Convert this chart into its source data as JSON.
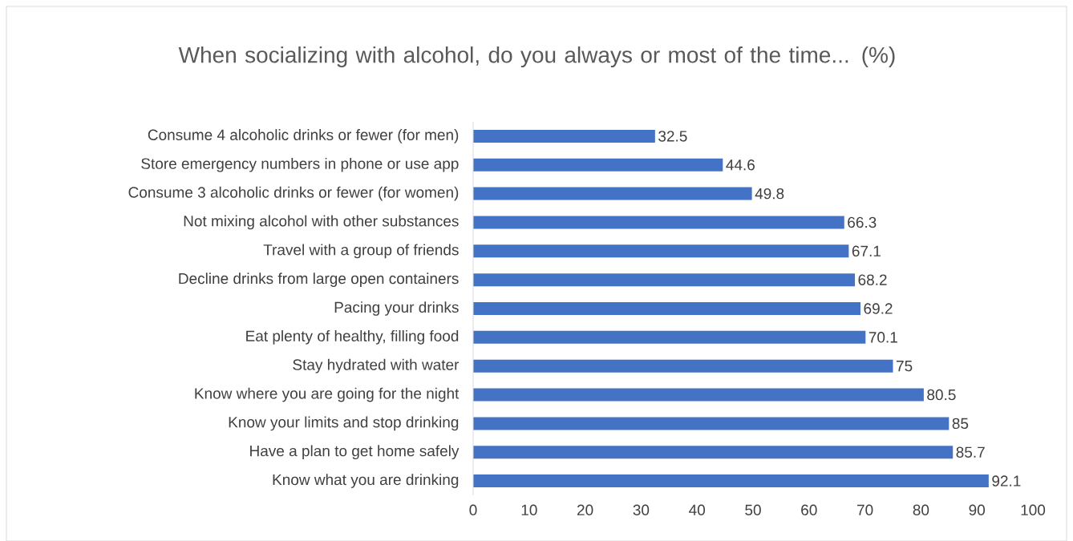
{
  "chart_data": {
    "type": "bar",
    "orientation": "horizontal",
    "title": "When socializing with alcohol, do you always or most of the time... (%)",
    "categories": [
      "Consume 4 alcoholic drinks or fewer (for men)",
      "Store emergency numbers in phone or use app",
      "Consume 3 alcoholic drinks or fewer (for women)",
      "Not mixing alcohol with other substances",
      "Travel with a group of friends",
      "Decline drinks from large open containers",
      "Pacing your drinks",
      "Eat plenty of healthy, filling food",
      "Stay hydrated with water",
      "Know where you are going for the night",
      "Know your limits and stop drinking",
      "Have a plan to get home safely",
      "Know what you are drinking"
    ],
    "values": [
      32.5,
      44.6,
      49.8,
      66.3,
      67.1,
      68.2,
      69.2,
      70.1,
      75,
      80.5,
      85,
      85.7,
      92.1
    ],
    "color": "#4472c4",
    "data_labels": true,
    "grid": false,
    "xlim": [
      0,
      100
    ],
    "xticks": [
      0,
      10,
      20,
      30,
      40,
      50,
      60,
      70,
      80,
      90,
      100
    ]
  }
}
